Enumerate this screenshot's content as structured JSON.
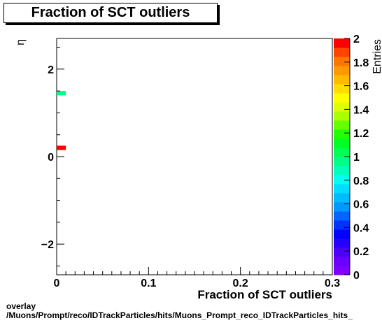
{
  "chart_data": {
    "type": "heatmap",
    "title": "Fraction of SCT outliers",
    "xlabel": "Fraction of SCT outliers",
    "ylabel": "η",
    "zlabel": "Entries",
    "xlim": [
      0,
      0.3
    ],
    "ylim": [
      -2.7,
      2.7
    ],
    "zlim": [
      0,
      2
    ],
    "x_ticks": [
      "0",
      "0.1",
      "0.2",
      "0.3"
    ],
    "x_tick_values": [
      0,
      0.1,
      0.2,
      0.3
    ],
    "y_ticks": [
      "−2",
      "0",
      "2"
    ],
    "y_tick_values": [
      -2,
      0,
      2
    ],
    "z_ticks": [
      "0",
      "0.2",
      "0.4",
      "0.6",
      "0.8",
      "1",
      "1.2",
      "1.4",
      "1.6",
      "1.8",
      "2"
    ],
    "z_tick_values": [
      0,
      0.2,
      0.4,
      0.6,
      0.8,
      1,
      1.2,
      1.4,
      1.6,
      1.8,
      2
    ],
    "cells": [
      {
        "x0": 0.0,
        "x1": 0.01,
        "y0": 1.4,
        "y1": 1.5,
        "value": 1
      },
      {
        "x0": 0.0,
        "x1": 0.01,
        "y0": 0.15,
        "y1": 0.25,
        "value": 2
      }
    ],
    "palette": [
      "#7f00ff",
      "#6a00ff",
      "#4d00ff",
      "#2600ff",
      "#0000ff",
      "#0033ff",
      "#0066ff",
      "#0099ff",
      "#00bbff",
      "#00ddff",
      "#00ffee",
      "#00ffbb",
      "#00ff88",
      "#00ff55",
      "#00ff22",
      "#22ff00",
      "#66ff00",
      "#aaff00",
      "#ddff00",
      "#ffff00",
      "#ffdd00",
      "#ffbb00",
      "#ff9900",
      "#ff7700",
      "#ff4400",
      "#ff0000"
    ]
  },
  "footer": {
    "line1": "overlay",
    "line2": "/Muons/Prompt/reco/IDTrackParticles/hits/Muons_Prompt_reco_IDTrackParticles_hits_"
  }
}
